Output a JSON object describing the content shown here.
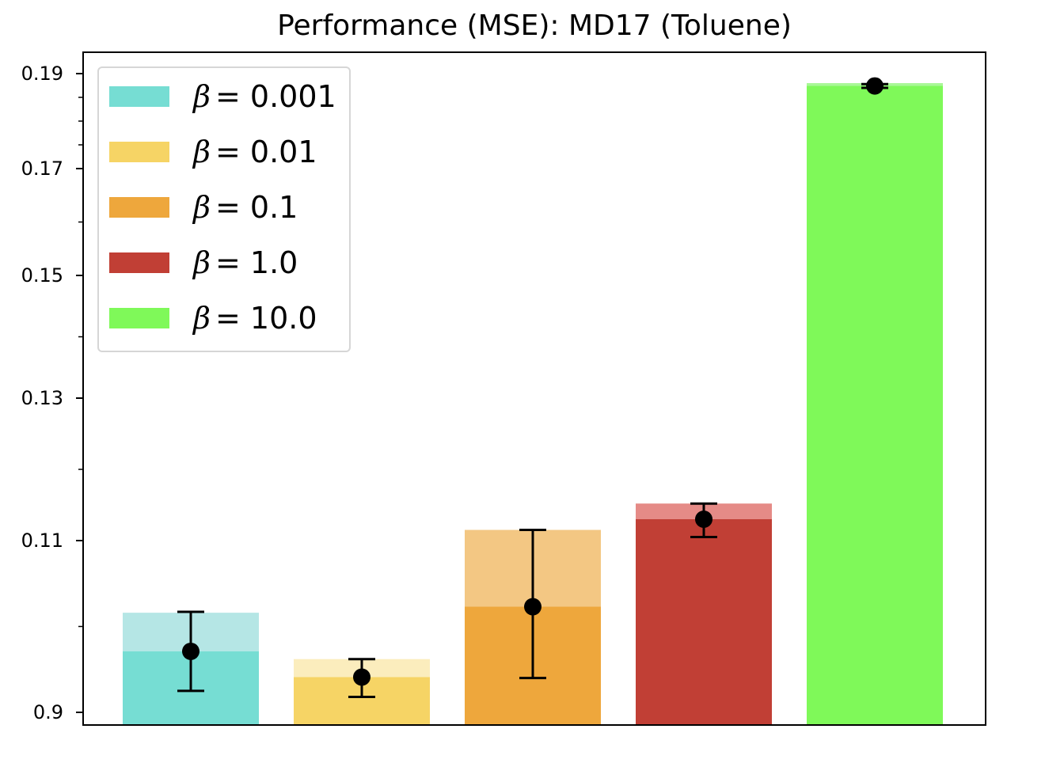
{
  "chart_data": {
    "type": "bar",
    "title": "Performance (MSE): MD17 (Toluene)",
    "xlabel": "",
    "ylabel": "",
    "yticks_major": [
      "0.9",
      "0.11",
      "0.13",
      "0.15",
      "0.17",
      "0.19"
    ],
    "legend_position": "top-left",
    "grid": false,
    "series": [
      {
        "name": "β = 0.001",
        "beta_symbol": "β",
        "beta_text": "= 0.001",
        "color": "#76ddd3",
        "upper_color": "#b5e6e5",
        "mean": 0.0971,
        "upper": 0.1016,
        "err_low": 0.0925,
        "err_high": 0.1017
      },
      {
        "name": "β = 0.01",
        "beta_symbol": "β",
        "beta_text": "= 0.01",
        "color": "#f6d465",
        "upper_color": "#fbedbd",
        "mean": 0.0941,
        "upper": 0.0962,
        "err_low": 0.0918,
        "err_high": 0.0962
      },
      {
        "name": "β = 0.1",
        "beta_symbol": "β",
        "beta_text": "= 0.1",
        "color": "#eea73c",
        "upper_color": "#f3c783",
        "mean": 0.1023,
        "upper": 0.1115,
        "err_low": 0.094,
        "err_high": 0.1115
      },
      {
        "name": "β = 1.0",
        "beta_symbol": "β",
        "beta_text": "= 1.0",
        "color": "#c13f35",
        "upper_color": "#e58b87",
        "mean": 0.113,
        "upper": 0.1152,
        "err_low": 0.1105,
        "err_high": 0.1152
      },
      {
        "name": "β = 10.0",
        "beta_symbol": "β",
        "beta_text": "= 10.0",
        "color": "#7ff959",
        "upper_color": "#a9f797",
        "mean": 0.1874,
        "upper": 0.188,
        "err_low": 0.187,
        "err_high": 0.1878
      }
    ]
  }
}
